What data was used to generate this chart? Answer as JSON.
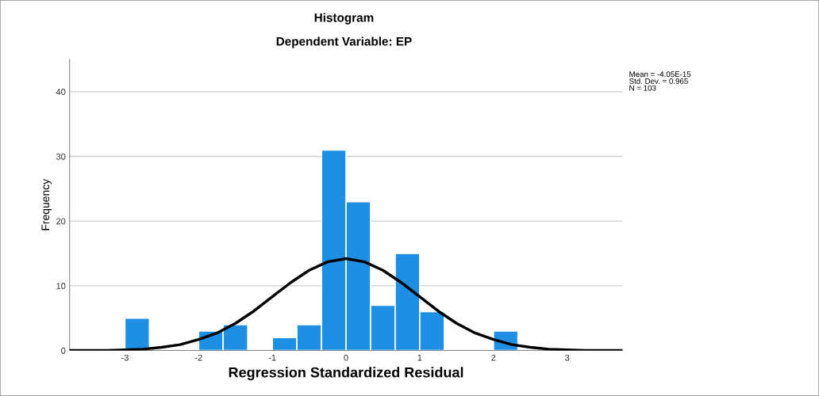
{
  "chart_data": {
    "type": "histogram",
    "title": "Histogram",
    "subtitle": "Dependent Variable: EP",
    "xlabel": "Regression Standardized Residual",
    "ylabel": "Frequency",
    "bins": [
      -3,
      -2.667,
      -2.333,
      -2,
      -1.667,
      -1.333,
      -1,
      -0.667,
      -0.333,
      0,
      0.333,
      0.667,
      1,
      1.333,
      1.667,
      2,
      2.333
    ],
    "values": [
      5,
      0,
      0,
      3,
      4,
      0,
      2,
      4,
      31,
      23,
      7,
      15,
      6,
      0,
      0,
      3
    ],
    "color": "#1e8fe3",
    "series": [
      {
        "type": "line",
        "color": "#000000",
        "x": [
          -3.75,
          -3.5,
          -3.25,
          -3,
          -2.75,
          -2.5,
          -2.25,
          -2,
          -1.75,
          -1.5,
          -1.25,
          -1,
          -0.75,
          -0.5,
          -0.25,
          0,
          0.25,
          0.5,
          0.75,
          1,
          1.25,
          1.5,
          1.75,
          2,
          2.25,
          2.5,
          2.75,
          3,
          3.25,
          3.5,
          3.75
        ],
        "values": [
          0,
          0,
          0,
          0.1,
          0.2,
          0.5,
          0.9,
          1.7,
          2.7,
          4.2,
          6.1,
          8.3,
          10.5,
          12.4,
          13.7,
          14.2,
          13.7,
          12.4,
          10.5,
          8.3,
          6.1,
          4.2,
          2.7,
          1.7,
          0.9,
          0.5,
          0.2,
          0.1,
          0,
          0,
          0
        ]
      }
    ],
    "xlim": [
      -3.75,
      3.75
    ],
    "ylim": [
      0,
      45
    ],
    "xticks": [
      -3,
      -2,
      -1,
      0,
      1,
      2,
      3
    ],
    "yticks": [
      0,
      10,
      20,
      30,
      40
    ],
    "grid": "y",
    "legend": false,
    "annotations": [
      "Mean = -4.05E-15\nStd. Dev. = 0.965\nN = 103"
    ]
  }
}
